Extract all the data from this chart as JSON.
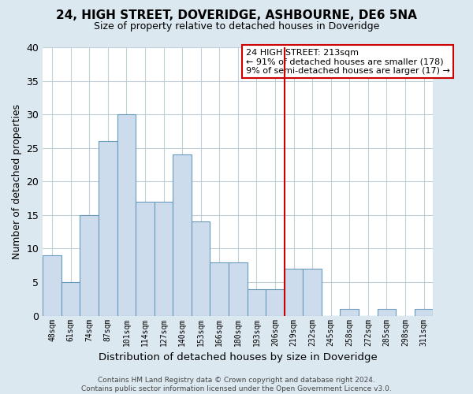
{
  "title": "24, HIGH STREET, DOVERIDGE, ASHBOURNE, DE6 5NA",
  "subtitle": "Size of property relative to detached houses in Doveridge",
  "xlabel": "Distribution of detached houses by size in Doveridge",
  "ylabel": "Number of detached properties",
  "bin_labels": [
    "48sqm",
    "61sqm",
    "74sqm",
    "87sqm",
    "101sqm",
    "114sqm",
    "127sqm",
    "140sqm",
    "153sqm",
    "166sqm",
    "180sqm",
    "193sqm",
    "206sqm",
    "219sqm",
    "232sqm",
    "245sqm",
    "258sqm",
    "272sqm",
    "285sqm",
    "298sqm",
    "311sqm"
  ],
  "bar_heights": [
    9,
    5,
    15,
    26,
    30,
    17,
    17,
    24,
    14,
    8,
    8,
    4,
    4,
    7,
    7,
    0,
    1,
    0,
    1,
    0,
    1
  ],
  "bar_color": "#ccdcec",
  "bar_edge_color": "#6699bb",
  "vline_x_index": 13.0,
  "vline_color": "#cc0000",
  "ylim": [
    0,
    40
  ],
  "yticks": [
    0,
    5,
    10,
    15,
    20,
    25,
    30,
    35,
    40
  ],
  "annotation_title": "24 HIGH STREET: 213sqm",
  "annotation_line1": "← 91% of detached houses are smaller (178)",
  "annotation_line2": "9% of semi-detached houses are larger (17) →",
  "footer_line1": "Contains HM Land Registry data © Crown copyright and database right 2024.",
  "footer_line2": "Contains public sector information licensed under the Open Government Licence v3.0.",
  "fig_background_color": "#dce8f0",
  "plot_background_color": "#ffffff",
  "grid_color": "#c0cfd8"
}
